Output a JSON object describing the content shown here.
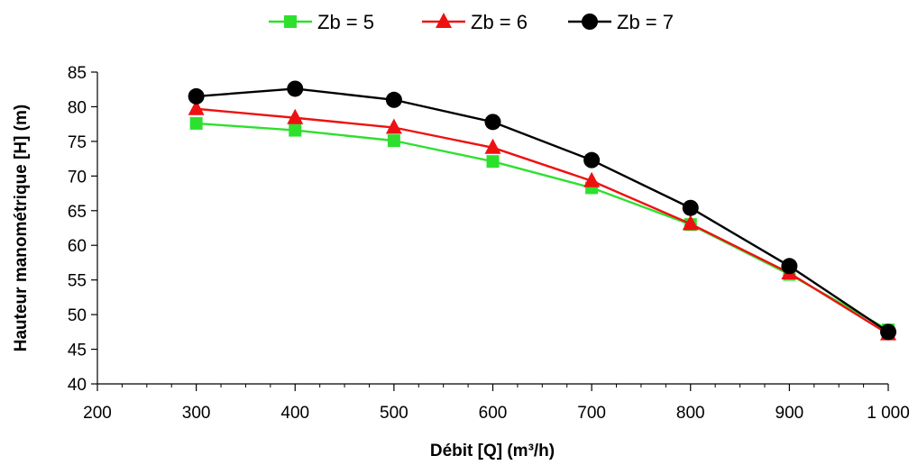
{
  "chart_data": {
    "type": "line",
    "x": [
      300,
      400,
      500,
      600,
      700,
      800,
      900,
      1000
    ],
    "series": [
      {
        "name": "Zb = 5",
        "color": "#2ee02e",
        "marker": "square",
        "values": [
          77.6,
          76.6,
          75.1,
          72.1,
          68.3,
          63.0,
          55.8,
          47.8
        ]
      },
      {
        "name": "Zb = 6",
        "color": "#ee1111",
        "marker": "triangle",
        "values": [
          79.7,
          78.4,
          77.0,
          74.1,
          69.3,
          63.1,
          56.0,
          47.2
        ]
      },
      {
        "name": "Zb = 7",
        "color": "#000000",
        "marker": "circle",
        "values": [
          81.5,
          82.6,
          81.0,
          77.8,
          72.3,
          65.4,
          57.0,
          47.5
        ]
      }
    ],
    "xlabel": "Débit [Q] (m³/h)",
    "ylabel": "Hauteur manométrique [H] (m)",
    "xlim": [
      200,
      1000
    ],
    "ylim": [
      40,
      85
    ],
    "x_ticks": [
      200,
      300,
      400,
      500,
      600,
      700,
      800,
      900,
      1000
    ],
    "x_tick_labels": [
      "200",
      "300",
      "400",
      "500",
      "600",
      "700",
      "800",
      "900",
      "1 000"
    ],
    "y_ticks": [
      40,
      45,
      50,
      55,
      60,
      65,
      70,
      75,
      80,
      85
    ],
    "y_tick_labels": [
      "40",
      "45",
      "50",
      "55",
      "60",
      "65",
      "70",
      "75",
      "80",
      "85"
    ],
    "grid": false,
    "legend_position": "top-center"
  }
}
